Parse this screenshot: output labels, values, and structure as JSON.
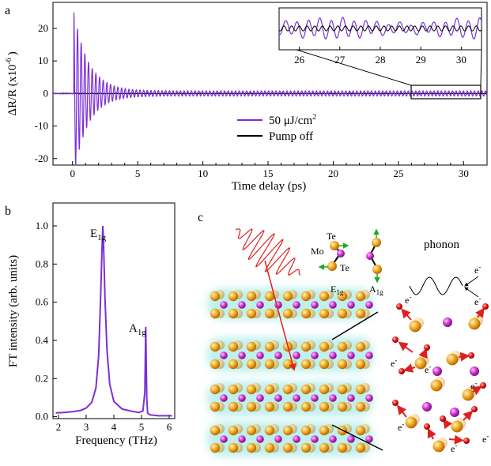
{
  "panels": {
    "a": "a",
    "b": "b",
    "c": "c"
  },
  "chart_data": [
    {
      "type": "line",
      "panel": "a",
      "xlabel": "Time delay (ps)",
      "ylabel": "ΔR/R (x10-6)",
      "ylabel_base": "ΔR/R (x10",
      "ylabel_exp": "-6",
      "ylabel_close": ")",
      "xlim": [
        -1.5,
        31.8
      ],
      "ylim": [
        -22,
        28
      ],
      "xticks": [
        0,
        5,
        10,
        15,
        20,
        25,
        30
      ],
      "yticks": [
        -20,
        -10,
        0,
        10,
        20
      ],
      "series": [
        {
          "name": "50 μJ/cm2",
          "name_base": "50 μJ/cm",
          "name_sup": "2",
          "color": "#7b2fd6",
          "description_values": {
            "first_max": 25.2,
            "first_min": -20.3,
            "decay_time_ps": 0.6,
            "long_amplitude": 0.8,
            "period_ps": 0.282
          }
        },
        {
          "name": "Pump off",
          "color": "#000000"
        }
      ],
      "inset": {
        "xlim": [
          25.5,
          30.5
        ],
        "xticks": [
          26,
          27,
          28,
          29,
          30
        ]
      }
    },
    {
      "type": "line",
      "panel": "b",
      "xlabel": "Frequency (THz)",
      "ylabel": "FT intensity (arb. units)",
      "xlim": [
        1.8,
        6.2
      ],
      "ylim": [
        -0.01,
        1.12
      ],
      "xticks": [
        2,
        3,
        4,
        5,
        6
      ],
      "yticks": [
        "0.0",
        "0.2",
        "0.4",
        "0.6",
        "0.8",
        "1.0"
      ],
      "series": [
        {
          "name": "",
          "color": "#7b2fd6",
          "x": [
            1.9,
            2.2,
            2.5,
            2.8,
            3.0,
            3.2,
            3.35,
            3.45,
            3.52,
            3.57,
            3.6,
            3.63,
            3.68,
            3.75,
            3.85,
            4.0,
            4.3,
            4.6,
            4.9,
            5.05,
            5.12,
            5.15,
            5.17,
            5.19,
            5.22,
            5.3,
            5.6,
            6.1
          ],
          "y": [
            0.02,
            0.022,
            0.026,
            0.033,
            0.045,
            0.075,
            0.15,
            0.32,
            0.62,
            0.86,
            1.0,
            0.9,
            0.62,
            0.35,
            0.17,
            0.08,
            0.04,
            0.03,
            0.022,
            0.03,
            0.13,
            0.47,
            0.3,
            0.09,
            0.02,
            0.01,
            0.005,
            0.005
          ]
        }
      ],
      "annotations": {
        "e1g": {
          "base": "E",
          "sub": "1g"
        },
        "a1g": {
          "base": "A",
          "sub": "1g"
        }
      }
    }
  ],
  "diagram_c": {
    "labels": {
      "te1": "Te",
      "mo": "Mo",
      "te2": "Te",
      "e1g_base": "E",
      "e1g_sub": "1g",
      "a1g_base": "A",
      "a1g_sub": "1g",
      "phonon": "phonon",
      "electron": "e-",
      "electron_base": "e",
      "electron_sup": "-"
    },
    "colors": {
      "mo": "#cc33cc",
      "te": "#e8a21a",
      "glow": "#bff0ee",
      "arrow": "#e02020",
      "green": "#22aa22"
    }
  }
}
